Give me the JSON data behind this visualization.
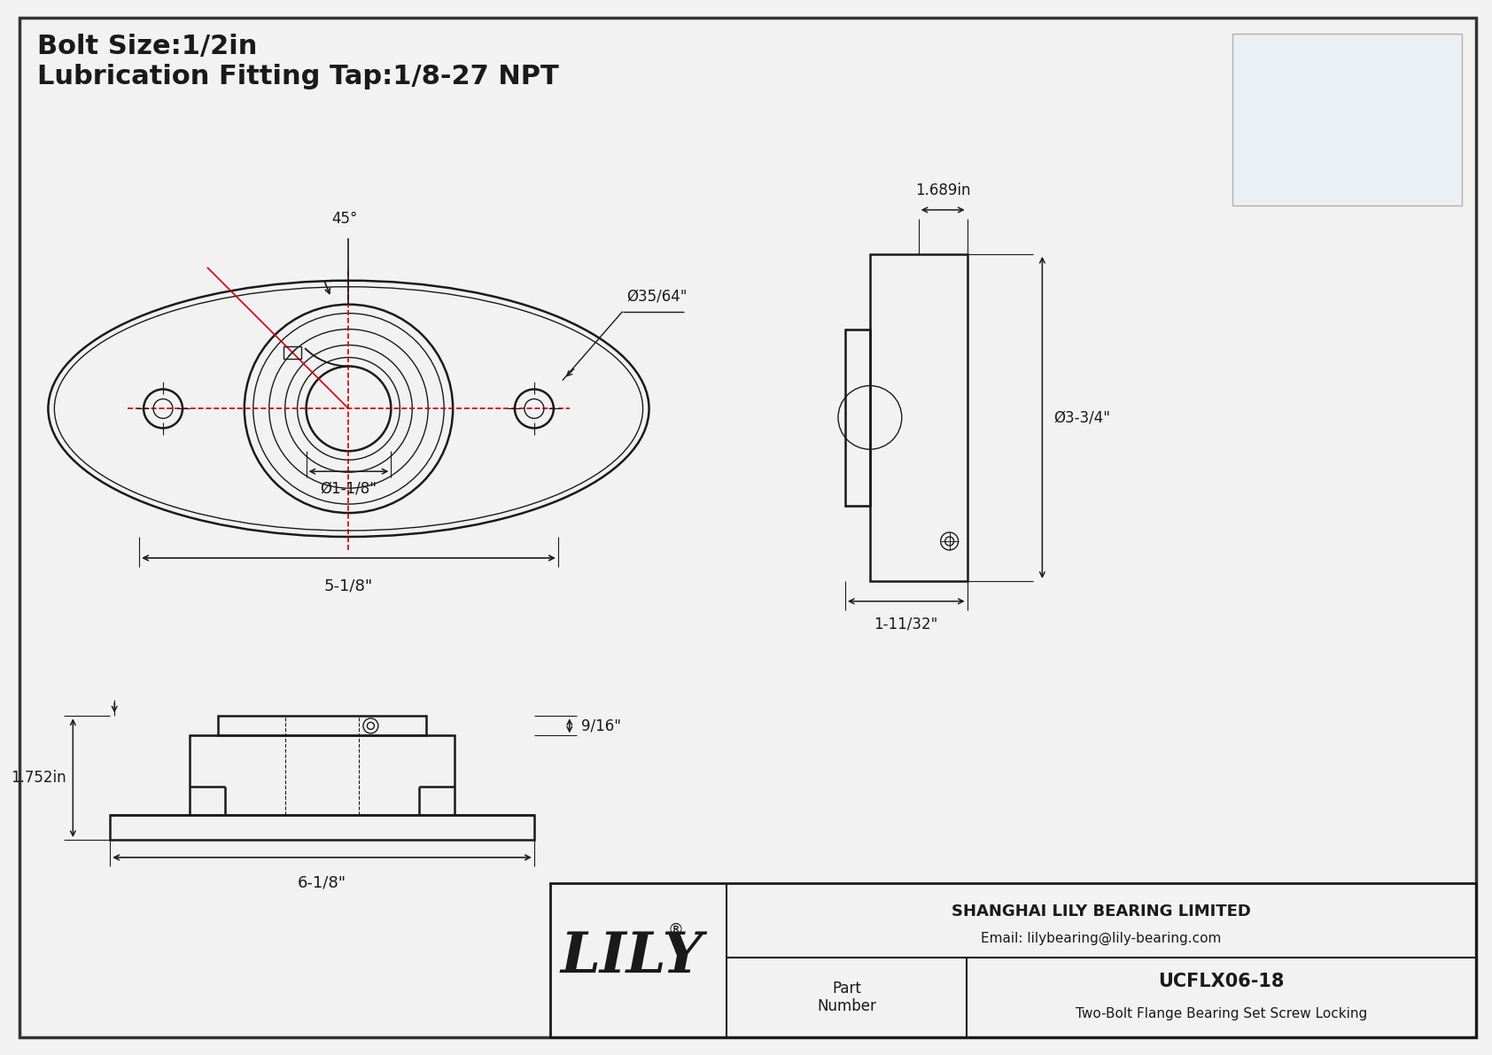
{
  "bg_color": "#f2f2f2",
  "line_color": "#1a1a1a",
  "red_color": "#cc0000",
  "border_color": "#333333",
  "title_line1": "Bolt Size:1/2in",
  "title_line2": "Lubrication Fitting Tap:1/8-27 NPT",
  "dim_35_64": "Ø35/64\"",
  "dim_1_1_8": "Ø1-1/8\"",
  "dim_5_1_8": "5-1/8\"",
  "dim_angle": "45°",
  "dim_1689": "1.689in",
  "dim_3_3_4": "Ø3-3/4\"",
  "dim_1_11_32": "1-11/32\"",
  "dim_1752": "1.752in",
  "dim_9_16": "9/16\"",
  "dim_6_1_8": "6-1/8\"",
  "part_number": "UCFLX06-18",
  "part_desc": "Two-Bolt Flange Bearing Set Screw Locking",
  "company": "SHANGHAI LILY BEARING LIMITED",
  "email": "Email: lilybearing@lily-bearing.com",
  "brand": "LILY",
  "registered": "®"
}
